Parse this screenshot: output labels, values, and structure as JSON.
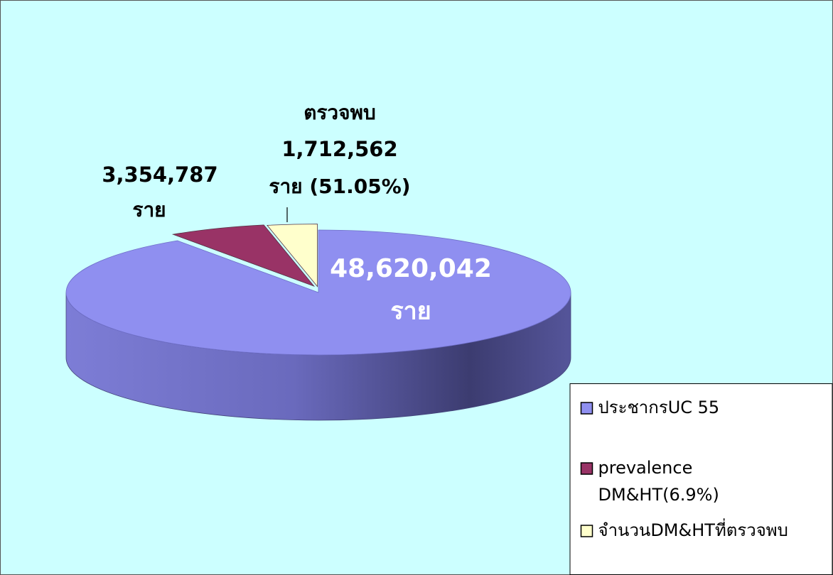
{
  "chart_data": {
    "type": "pie",
    "categories": [
      "ประชากรUC 55",
      "prevalence DM&HT(6.9%)",
      "จำนวนDM&HTที่ตรวจพบ"
    ],
    "values": [
      48620042,
      3354787,
      1712562
    ],
    "value_labels": [
      [
        "48,620,042",
        "ราย"
      ],
      [
        "3,354,787",
        "ราย"
      ],
      [
        "ตรวจพบ",
        "1,712,562",
        "ราย (51.05%)"
      ]
    ],
    "colors": [
      "#8f8ff0",
      "#993366",
      "#ffffcc"
    ],
    "legend": "bottom-right"
  }
}
